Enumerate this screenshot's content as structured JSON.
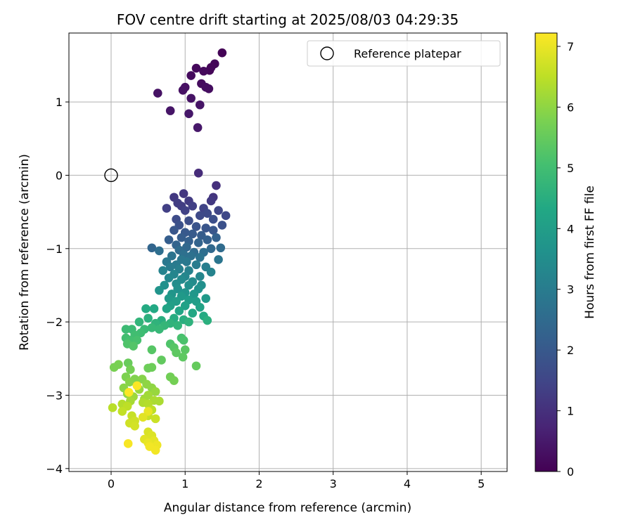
{
  "chart_data": {
    "type": "scatter",
    "title": "FOV centre drift starting at 2025/08/03 04:29:35",
    "xlabel": "Angular distance from reference (arcmin)",
    "ylabel": "Rotation from reference (arcmin)",
    "xlim": [
      -0.57,
      5.35
    ],
    "ylim": [
      -4.04,
      1.94
    ],
    "xticks": [
      0,
      1,
      2,
      3,
      4,
      5
    ],
    "yticks": [
      1,
      0,
      -1,
      -2,
      -3,
      -4
    ],
    "xtick_labels": [
      "0",
      "1",
      "2",
      "3",
      "4",
      "5"
    ],
    "ytick_labels": [
      "1",
      "0",
      "−1",
      "−2",
      "−3",
      "−4"
    ],
    "grid": true,
    "colorbar": {
      "label": "Hours from first FF file",
      "min": 0,
      "max": 7.22,
      "ticks": [
        0,
        1,
        2,
        3,
        4,
        5,
        6,
        7
      ],
      "colormap": "viridis"
    },
    "legend": {
      "position": "top-right",
      "entries": [
        {
          "label": "Reference platepar",
          "marker": "open-circle"
        }
      ]
    },
    "reference_point": {
      "x": 0.0,
      "y": 0.0,
      "label": "Reference platepar"
    },
    "series": [
      {
        "color_by": "hours",
        "points": [
          [
            1.5,
            1.67,
            0.05
          ],
          [
            1.4,
            1.52,
            0.08
          ],
          [
            1.35,
            1.47,
            0.1
          ],
          [
            1.33,
            1.43,
            0.12
          ],
          [
            1.15,
            1.46,
            0.15
          ],
          [
            1.25,
            1.42,
            0.18
          ],
          [
            1.08,
            1.36,
            0.2
          ],
          [
            1.22,
            1.25,
            0.22
          ],
          [
            1.32,
            1.18,
            0.25
          ],
          [
            1.28,
            1.2,
            0.27
          ],
          [
            1.0,
            1.2,
            0.3
          ],
          [
            0.97,
            1.16,
            0.32
          ],
          [
            0.63,
            1.12,
            0.35
          ],
          [
            1.08,
            1.05,
            0.37
          ],
          [
            1.2,
            0.96,
            0.4
          ],
          [
            0.8,
            0.88,
            0.42
          ],
          [
            1.05,
            0.84,
            0.45
          ],
          [
            1.17,
            0.65,
            0.48
          ],
          [
            1.18,
            0.03,
            0.9
          ],
          [
            1.42,
            -0.14,
            1.0
          ],
          [
            1.38,
            -0.3,
            1.1
          ],
          [
            1.35,
            -0.35,
            1.2
          ],
          [
            0.98,
            -0.25,
            1.15
          ],
          [
            0.85,
            -0.3,
            1.2
          ],
          [
            1.05,
            -0.35,
            1.25
          ],
          [
            0.9,
            -0.38,
            1.3
          ],
          [
            0.95,
            -0.42,
            1.3
          ],
          [
            1.1,
            -0.42,
            1.35
          ],
          [
            0.75,
            -0.45,
            1.35
          ],
          [
            1.0,
            -0.48,
            1.4
          ],
          [
            1.25,
            -0.45,
            1.45
          ],
          [
            1.45,
            -0.48,
            1.5
          ],
          [
            1.55,
            -0.55,
            1.55
          ],
          [
            1.3,
            -0.52,
            1.6
          ],
          [
            1.2,
            -0.55,
            1.6
          ],
          [
            0.88,
            -0.6,
            1.65
          ],
          [
            1.05,
            -0.62,
            1.7
          ],
          [
            1.38,
            -0.6,
            1.75
          ],
          [
            1.5,
            -0.68,
            1.8
          ],
          [
            0.92,
            -0.68,
            1.8
          ],
          [
            1.15,
            -0.7,
            1.85
          ],
          [
            1.28,
            -0.72,
            1.9
          ],
          [
            1.38,
            -0.75,
            1.95
          ],
          [
            0.85,
            -0.75,
            1.95
          ],
          [
            1.0,
            -0.78,
            2.0
          ],
          [
            1.1,
            -0.8,
            2.05
          ],
          [
            1.22,
            -0.82,
            2.1
          ],
          [
            0.95,
            -0.85,
            2.1
          ],
          [
            0.78,
            -0.88,
            2.15
          ],
          [
            1.05,
            -0.9,
            2.2
          ],
          [
            1.3,
            -0.88,
            2.2
          ],
          [
            1.42,
            -0.85,
            2.25
          ],
          [
            1.18,
            -0.92,
            2.3
          ],
          [
            0.88,
            -0.95,
            2.3
          ],
          [
            0.55,
            -0.99,
            2.35
          ],
          [
            1.02,
            -0.98,
            2.4
          ],
          [
            1.35,
            -1.0,
            2.45
          ],
          [
            1.48,
            -0.99,
            2.5
          ],
          [
            0.92,
            -1.02,
            2.5
          ],
          [
            1.12,
            -1.05,
            2.55
          ],
          [
            1.25,
            -1.05,
            2.6
          ],
          [
            0.65,
            -1.03,
            2.6
          ],
          [
            0.98,
            -1.08,
            2.65
          ],
          [
            1.08,
            -1.1,
            2.7
          ],
          [
            0.82,
            -1.1,
            2.75
          ],
          [
            1.2,
            -1.12,
            2.75
          ],
          [
            1.45,
            -1.15,
            2.8
          ],
          [
            0.95,
            -1.15,
            2.85
          ],
          [
            1.02,
            -1.18,
            2.9
          ],
          [
            0.75,
            -1.18,
            2.9
          ],
          [
            0.88,
            -1.22,
            2.95
          ],
          [
            1.15,
            -1.22,
            3.0
          ],
          [
            0.8,
            -1.25,
            3.0
          ],
          [
            1.28,
            -1.25,
            3.05
          ],
          [
            0.92,
            -1.28,
            3.1
          ],
          [
            1.05,
            -1.3,
            3.15
          ],
          [
            1.35,
            -1.32,
            3.2
          ],
          [
            0.7,
            -1.3,
            3.2
          ],
          [
            0.85,
            -1.35,
            3.25
          ],
          [
            1.0,
            -1.38,
            3.3
          ],
          [
            1.2,
            -1.38,
            3.3
          ],
          [
            0.78,
            -1.4,
            3.35
          ],
          [
            0.95,
            -1.42,
            3.4
          ],
          [
            1.1,
            -1.45,
            3.45
          ],
          [
            0.88,
            -1.48,
            3.5
          ],
          [
            1.05,
            -1.5,
            3.55
          ],
          [
            1.22,
            -1.5,
            3.55
          ],
          [
            0.72,
            -1.5,
            3.6
          ],
          [
            0.9,
            -1.55,
            3.6
          ],
          [
            1.18,
            -1.55,
            3.65
          ],
          [
            0.65,
            -1.57,
            3.7
          ],
          [
            1.0,
            -1.6,
            3.7
          ],
          [
            0.82,
            -1.62,
            3.75
          ],
          [
            1.12,
            -1.62,
            3.8
          ],
          [
            0.95,
            -1.65,
            3.85
          ],
          [
            1.28,
            -1.68,
            3.85
          ],
          [
            0.78,
            -1.68,
            3.9
          ],
          [
            1.05,
            -1.7,
            3.95
          ],
          [
            0.88,
            -1.72,
            4.0
          ],
          [
            1.15,
            -1.72,
            4.0
          ],
          [
            0.8,
            -1.78,
            4.05
          ],
          [
            1.0,
            -1.78,
            4.1
          ],
          [
            1.2,
            -1.8,
            4.15
          ],
          [
            0.75,
            -1.82,
            4.2
          ],
          [
            0.92,
            -1.85,
            4.25
          ],
          [
            1.1,
            -1.88,
            4.3
          ],
          [
            0.58,
            -1.82,
            4.35
          ],
          [
            0.47,
            -1.82,
            4.4
          ],
          [
            1.25,
            -1.92,
            4.4
          ],
          [
            0.85,
            -1.95,
            4.45
          ],
          [
            0.98,
            -1.97,
            4.5
          ],
          [
            0.68,
            -1.98,
            4.5
          ],
          [
            0.5,
            -1.95,
            4.55
          ],
          [
            1.3,
            -1.98,
            4.55
          ],
          [
            1.05,
            -2.0,
            4.6
          ],
          [
            0.8,
            -2.02,
            4.65
          ],
          [
            0.6,
            -2.02,
            4.65
          ],
          [
            0.38,
            -2.0,
            4.7
          ],
          [
            0.9,
            -2.05,
            4.7
          ],
          [
            0.72,
            -2.05,
            4.75
          ],
          [
            0.55,
            -2.08,
            4.8
          ],
          [
            0.65,
            -2.1,
            4.8
          ],
          [
            0.45,
            -2.1,
            4.85
          ],
          [
            0.28,
            -2.1,
            4.9
          ],
          [
            0.2,
            -2.1,
            4.9
          ],
          [
            0.4,
            -2.15,
            4.95
          ],
          [
            0.32,
            -2.18,
            5.0
          ],
          [
            0.2,
            -2.22,
            5.0
          ],
          [
            0.25,
            -2.25,
            5.05
          ],
          [
            0.35,
            -2.25,
            5.1
          ],
          [
            0.95,
            -2.22,
            5.1
          ],
          [
            0.98,
            -2.25,
            5.15
          ],
          [
            0.22,
            -2.3,
            5.2
          ],
          [
            0.8,
            -2.3,
            5.2
          ],
          [
            0.3,
            -2.33,
            5.25
          ],
          [
            0.85,
            -2.35,
            5.3
          ],
          [
            0.55,
            -2.38,
            5.3
          ],
          [
            1.0,
            -2.38,
            5.35
          ],
          [
            0.88,
            -2.42,
            5.4
          ],
          [
            0.97,
            -2.48,
            5.4
          ],
          [
            0.68,
            -2.52,
            5.45
          ],
          [
            1.15,
            -2.6,
            5.5
          ],
          [
            0.23,
            -2.56,
            5.55
          ],
          [
            0.5,
            -2.63,
            5.6
          ],
          [
            0.55,
            -2.62,
            5.6
          ],
          [
            0.8,
            -2.75,
            5.65
          ],
          [
            0.85,
            -2.8,
            5.7
          ],
          [
            0.26,
            -2.65,
            5.7
          ],
          [
            0.1,
            -2.58,
            5.75
          ],
          [
            0.04,
            -2.62,
            5.75
          ],
          [
            0.2,
            -2.75,
            5.8
          ],
          [
            0.32,
            -2.78,
            5.85
          ],
          [
            0.25,
            -2.82,
            5.9
          ],
          [
            0.42,
            -2.78,
            5.9
          ],
          [
            0.17,
            -2.9,
            5.95
          ],
          [
            0.48,
            -2.85,
            6.0
          ],
          [
            0.55,
            -2.9,
            6.0
          ],
          [
            0.22,
            -2.98,
            6.05
          ],
          [
            0.38,
            -2.92,
            6.1
          ],
          [
            0.6,
            -2.95,
            6.1
          ],
          [
            0.3,
            -3.02,
            6.15
          ],
          [
            0.45,
            -3.05,
            6.2
          ],
          [
            0.5,
            -3.0,
            6.2
          ],
          [
            0.26,
            -3.08,
            6.25
          ],
          [
            0.58,
            -3.07,
            6.3
          ],
          [
            0.65,
            -3.08,
            6.3
          ],
          [
            0.43,
            -3.1,
            6.35
          ],
          [
            0.5,
            -3.12,
            6.4
          ],
          [
            0.15,
            -3.12,
            6.4
          ],
          [
            0.02,
            -3.17,
            6.45
          ],
          [
            0.22,
            -3.15,
            6.5
          ],
          [
            0.55,
            -3.2,
            6.5
          ],
          [
            0.15,
            -3.22,
            6.55
          ],
          [
            0.28,
            -3.28,
            6.6
          ],
          [
            0.5,
            -3.28,
            6.6
          ],
          [
            0.6,
            -3.32,
            6.65
          ],
          [
            0.32,
            -3.35,
            6.7
          ],
          [
            0.25,
            -3.38,
            6.7
          ],
          [
            0.32,
            -3.42,
            6.75
          ],
          [
            0.5,
            -3.5,
            6.8
          ],
          [
            0.55,
            -3.55,
            6.85
          ],
          [
            0.45,
            -3.6,
            6.9
          ],
          [
            0.58,
            -3.62,
            6.95
          ],
          [
            0.5,
            -3.65,
            7.0
          ],
          [
            0.62,
            -3.68,
            7.05
          ],
          [
            0.52,
            -3.7,
            7.1
          ],
          [
            0.6,
            -3.75,
            7.1
          ],
          [
            0.23,
            -3.66,
            7.15
          ],
          [
            0.35,
            -2.87,
            7.2
          ],
          [
            0.24,
            -2.96,
            7.2
          ],
          [
            0.5,
            -3.22,
            7.0
          ],
          [
            0.43,
            -3.3,
            6.9
          ]
        ]
      }
    ]
  }
}
